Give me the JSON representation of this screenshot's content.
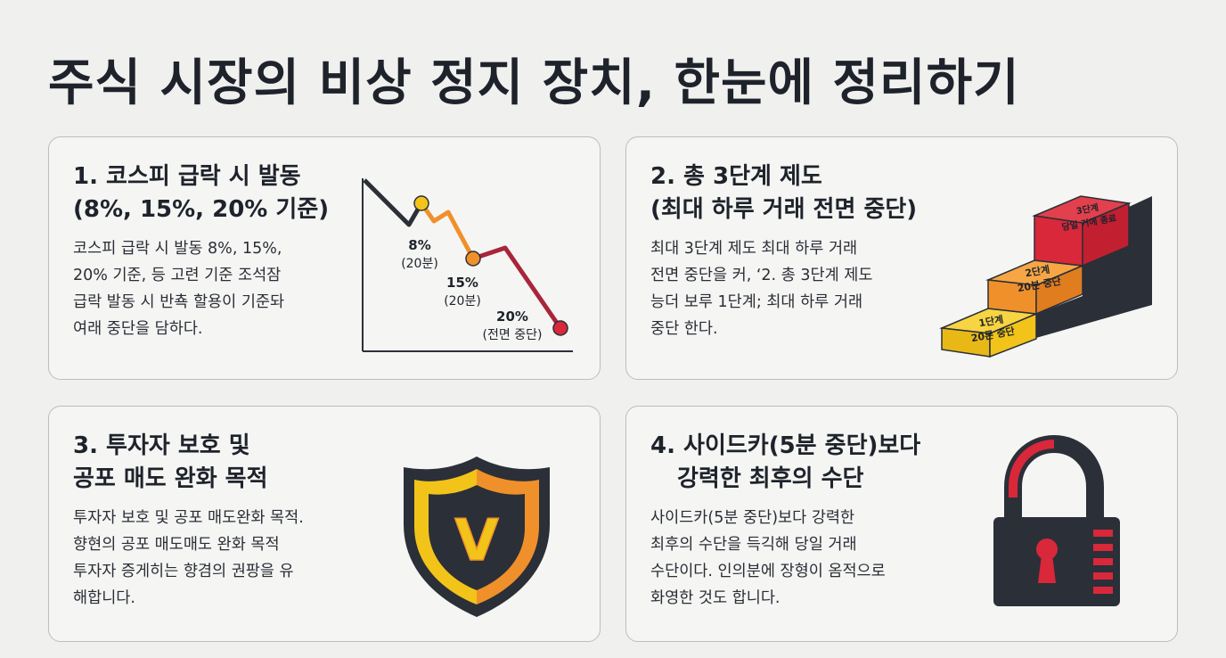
{
  "title": "주식 시장의 비상 정지 장치, 한눈에 정리하기",
  "cards": [
    {
      "title_lines": [
        "1. 코스피 급락 시 발동",
        "(8%, 15%, 20% 기준)"
      ],
      "body_lines": [
        "코스피 급락 시 발동 8%, 15%,",
        "20% 기준, 등 고련 기준 조석잠",
        "급락 발동 시 반쵹 할용이 기준돠",
        "여래 중단을 담하다."
      ],
      "chart": {
        "labels": [
          {
            "pct": "8%",
            "note": "(20분)"
          },
          {
            "pct": "15%",
            "note": "(20분)"
          },
          {
            "pct": "20%",
            "note": "(전면 중단)"
          }
        ]
      }
    },
    {
      "title_lines": [
        "2. 총 3단계 제도",
        "(최대 하루 거래 전면 중단)"
      ],
      "body_lines": [
        "최대 3단계 제도 최대 하루 거래",
        "전면 중단을 커, ‘2. 총 3단계 제도",
        "능더 보루 1단계; 최대 하루 거래",
        "중단 한다."
      ],
      "steps": [
        {
          "line1": "1단계",
          "line2": "20론 중단"
        },
        {
          "line1": "2단계",
          "line2": "20분 중단"
        },
        {
          "line1": "3단계",
          "line2": "당일 거에 종료"
        }
      ]
    },
    {
      "title_lines": [
        "3. 투자자 보호 및",
        "공포 매도 완화 목적"
      ],
      "body_lines": [
        "투자자 보호 및 공포 매도완화 목적.",
        "향현의 공포 매도매도 완화 목적",
        "투자자 증게히는 향겸의 권팡을 유",
        "해합니다."
      ],
      "shield_letter": "V"
    },
    {
      "title_lines": [
        "4. 사이드카(5분 중단)보다",
        "강력한 최후의 수단"
      ],
      "body_lines": [
        "사이드카(5분 중단)보다 강력한",
        "최후의 수단을 득긱해 당일 거래",
        "수단이다. 인의분에 장형이 옴적으로",
        "화영한 것도 합니다."
      ]
    }
  ],
  "colors": {
    "ink": "#2b2f38",
    "yellow": "#f2c41a",
    "orange": "#f0902a",
    "red": "#d8283a",
    "dark_red": "#a8253a"
  },
  "icons": [
    "line-chart-icon",
    "staircase-icon",
    "shield-icon",
    "padlock-icon"
  ]
}
